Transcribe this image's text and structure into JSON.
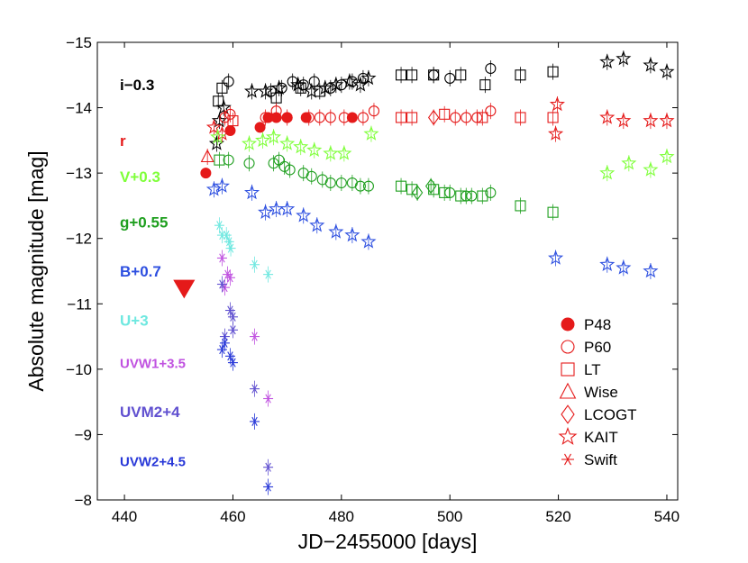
{
  "chart_data": {
    "type": "scatter",
    "xlabel": "JD−2455000 [days]",
    "ylabel": "Absolute magnitude [mag]",
    "xlim": [
      435,
      542
    ],
    "ylim": [
      -15,
      -8
    ],
    "y_inverted": true,
    "xticks": [
      440,
      460,
      480,
      500,
      520,
      540
    ],
    "xtick_labels": [
      "440",
      "460",
      "480",
      "500",
      "520",
      "540"
    ],
    "yticks": [
      -15,
      -14,
      -13,
      -12,
      -11,
      -10,
      -9,
      -8
    ],
    "ytick_labels": [
      "−15",
      "−14",
      "−13",
      "−12",
      "−11",
      "−10",
      "−9",
      "−8"
    ],
    "band_labels": [
      {
        "text": "i−0.3",
        "color": "#000000",
        "y": -14.35
      },
      {
        "text": "r",
        "color": "#e51a1a",
        "y": -13.5
      },
      {
        "text": "V+0.3",
        "color": "#7fff3a",
        "y": -12.95
      },
      {
        "text": "g+0.55",
        "color": "#1f9f1f",
        "y": -12.25
      },
      {
        "text": "B+0.7",
        "color": "#2d4fe0",
        "y": -11.5
      },
      {
        "text": "U+3",
        "color": "#6fe8e0",
        "y": -10.75
      },
      {
        "text": "UVW1+3.5",
        "color": "#c052e0",
        "y": -10.1
      },
      {
        "text": "UVM2+4",
        "color": "#6050d0",
        "y": -9.35
      },
      {
        "text": "UVW2+4.5",
        "color": "#2838d8",
        "y": -8.6
      }
    ],
    "legend": {
      "position": "bottom-right",
      "color": "#e51a1a",
      "entries": [
        {
          "label": "P48",
          "marker": "filled-circle"
        },
        {
          "label": "P60",
          "marker": "circle"
        },
        {
          "label": "LT",
          "marker": "square"
        },
        {
          "label": "Wise",
          "marker": "triangle"
        },
        {
          "label": "LCOGT",
          "marker": "diamond"
        },
        {
          "label": "KAIT",
          "marker": "star"
        },
        {
          "label": "Swift",
          "marker": "asterisk"
        }
      ]
    },
    "series": [
      {
        "band": "i",
        "color": "#000000",
        "marker": "star",
        "points": [
          [
            457,
            -13.45
          ],
          [
            457.5,
            -13.8
          ],
          [
            458.3,
            -14.0
          ],
          [
            463.5,
            -14.25
          ],
          [
            466,
            -14.25
          ],
          [
            468.5,
            -14.3
          ],
          [
            472,
            -14.35
          ],
          [
            474.5,
            -14.25
          ],
          [
            477,
            -14.3
          ],
          [
            479,
            -14.35
          ],
          [
            481.5,
            -14.4
          ],
          [
            483.5,
            -14.35
          ],
          [
            485,
            -14.45
          ],
          [
            529,
            -14.7
          ],
          [
            532,
            -14.75
          ],
          [
            537,
            -14.65
          ],
          [
            540,
            -14.55
          ]
        ]
      },
      {
        "band": "i",
        "color": "#000000",
        "marker": "square",
        "points": [
          [
            457.3,
            -14.1
          ],
          [
            458,
            -14.3
          ],
          [
            468,
            -14.15
          ],
          [
            472.5,
            -14.3
          ],
          [
            476,
            -14.25
          ],
          [
            491,
            -14.5
          ],
          [
            493,
            -14.5
          ],
          [
            497,
            -14.5
          ],
          [
            502,
            -14.5
          ],
          [
            506.5,
            -14.35
          ],
          [
            513,
            -14.5
          ],
          [
            519,
            -14.55
          ]
        ]
      },
      {
        "band": "i",
        "color": "#000000",
        "marker": "circle",
        "points": [
          [
            459.2,
            -14.4
          ],
          [
            467,
            -14.25
          ],
          [
            469,
            -14.3
          ],
          [
            471,
            -14.4
          ],
          [
            473,
            -14.35
          ],
          [
            475,
            -14.4
          ],
          [
            478,
            -14.3
          ],
          [
            480,
            -14.35
          ],
          [
            482,
            -14.4
          ],
          [
            484,
            -14.45
          ],
          [
            497,
            -14.5
          ],
          [
            500,
            -14.45
          ],
          [
            507.5,
            -14.6
          ]
        ]
      },
      {
        "band": "r",
        "color": "#e51a1a",
        "marker": "filled-circle",
        "points": [
          [
            455,
            -13.0
          ],
          [
            459.5,
            -13.65
          ],
          [
            465,
            -13.7
          ],
          [
            466.5,
            -13.85
          ],
          [
            468,
            -13.85
          ],
          [
            470,
            -13.85
          ],
          [
            473.5,
            -13.85
          ],
          [
            482,
            -13.85
          ]
        ]
      },
      {
        "band": "r",
        "color": "#e51a1a",
        "marker": "triangle",
        "points": [
          [
            455.3,
            -13.25
          ]
        ]
      },
      {
        "band": "r",
        "color": "#e51a1a",
        "marker": "star",
        "points": [
          [
            456.5,
            -13.7
          ],
          [
            458,
            -13.6
          ],
          [
            519.5,
            -13.6
          ],
          [
            519.8,
            -14.05
          ],
          [
            529,
            -13.85
          ],
          [
            532,
            -13.8
          ],
          [
            537,
            -13.8
          ],
          [
            540,
            -13.8
          ]
        ]
      },
      {
        "band": "r",
        "color": "#e51a1a",
        "marker": "circle",
        "points": [
          [
            458.5,
            -13.85
          ],
          [
            459.5,
            -13.9
          ],
          [
            466,
            -13.85
          ],
          [
            468,
            -13.95
          ],
          [
            470,
            -13.85
          ],
          [
            474,
            -13.85
          ],
          [
            476,
            -13.85
          ],
          [
            478,
            -13.85
          ],
          [
            480.5,
            -13.85
          ],
          [
            484,
            -13.85
          ],
          [
            486,
            -13.95
          ],
          [
            501,
            -13.85
          ],
          [
            503,
            -13.85
          ],
          [
            505,
            -13.85
          ],
          [
            507.5,
            -13.95
          ]
        ]
      },
      {
        "band": "r",
        "color": "#e51a1a",
        "marker": "square",
        "points": [
          [
            460,
            -13.8
          ],
          [
            491,
            -13.85
          ],
          [
            493,
            -13.85
          ],
          [
            499,
            -13.9
          ],
          [
            506,
            -13.85
          ],
          [
            513,
            -13.85
          ],
          [
            519,
            -13.85
          ]
        ]
      },
      {
        "band": "r",
        "color": "#e51a1a",
        "marker": "diamond",
        "points": [
          [
            497,
            -13.85
          ]
        ]
      },
      {
        "band": "V",
        "color": "#7fff3a",
        "marker": "star",
        "points": [
          [
            457.2,
            -13.55
          ],
          [
            463,
            -13.45
          ],
          [
            465.5,
            -13.5
          ],
          [
            467.5,
            -13.55
          ],
          [
            470,
            -13.45
          ],
          [
            472.5,
            -13.4
          ],
          [
            475,
            -13.35
          ],
          [
            478,
            -13.3
          ],
          [
            480.5,
            -13.3
          ],
          [
            485.5,
            -13.6
          ],
          [
            529,
            -13.0
          ],
          [
            533,
            -13.15
          ],
          [
            537,
            -13.05
          ],
          [
            540,
            -13.25
          ]
        ]
      },
      {
        "band": "g",
        "color": "#1f9f1f",
        "marker": "square",
        "points": [
          [
            457.5,
            -13.2
          ],
          [
            491,
            -12.8
          ],
          [
            493,
            -12.75
          ],
          [
            497,
            -12.75
          ],
          [
            499,
            -12.7
          ],
          [
            502,
            -12.65
          ],
          [
            506,
            -12.65
          ],
          [
            513,
            -12.5
          ],
          [
            519,
            -12.4
          ]
        ]
      },
      {
        "band": "g",
        "color": "#1f9f1f",
        "marker": "circle",
        "points": [
          [
            459.2,
            -13.2
          ],
          [
            463,
            -13.15
          ],
          [
            467.5,
            -13.15
          ],
          [
            468.5,
            -13.2
          ],
          [
            469.5,
            -13.1
          ],
          [
            470.5,
            -13.05
          ],
          [
            473,
            -13.0
          ],
          [
            474.5,
            -12.95
          ],
          [
            476.5,
            -12.9
          ],
          [
            478,
            -12.85
          ],
          [
            480,
            -12.85
          ],
          [
            482,
            -12.85
          ],
          [
            483.5,
            -12.8
          ],
          [
            485,
            -12.8
          ],
          [
            500,
            -12.7
          ],
          [
            503,
            -12.65
          ],
          [
            504,
            -12.65
          ],
          [
            507.5,
            -12.7
          ]
        ]
      },
      {
        "band": "g",
        "color": "#1f9f1f",
        "marker": "diamond",
        "points": [
          [
            494,
            -12.7
          ],
          [
            496.5,
            -12.8
          ]
        ]
      },
      {
        "band": "B",
        "color": "#2d4fe0",
        "marker": "star",
        "points": [
          [
            456.5,
            -12.75
          ],
          [
            458,
            -12.8
          ],
          [
            463.5,
            -12.7
          ],
          [
            466,
            -12.4
          ],
          [
            468,
            -12.45
          ],
          [
            470,
            -12.45
          ],
          [
            473,
            -12.35
          ],
          [
            475.5,
            -12.2
          ],
          [
            479,
            -12.1
          ],
          [
            482,
            -12.05
          ],
          [
            485,
            -11.95
          ],
          [
            519.5,
            -11.7
          ],
          [
            529,
            -11.6
          ],
          [
            532,
            -11.55
          ],
          [
            537,
            -11.5
          ]
        ]
      },
      {
        "band": "U",
        "color": "#6fe8e0",
        "marker": "asterisk",
        "points": [
          [
            457.5,
            -12.2
          ],
          [
            458,
            -12.05
          ],
          [
            458.8,
            -12.05
          ],
          [
            459.3,
            -11.95
          ],
          [
            459.6,
            -11.85
          ],
          [
            464,
            -11.6
          ],
          [
            466.5,
            -11.45
          ]
        ]
      },
      {
        "band": "UVW1",
        "color": "#c052e0",
        "marker": "asterisk",
        "points": [
          [
            458,
            -11.7
          ],
          [
            459,
            -11.45
          ],
          [
            459.5,
            -11.4
          ],
          [
            458.5,
            -11.25
          ],
          [
            464,
            -10.5
          ],
          [
            466.5,
            -9.55
          ]
        ]
      },
      {
        "band": "UVM2",
        "color": "#6050d0",
        "marker": "asterisk",
        "points": [
          [
            458,
            -11.3
          ],
          [
            459.5,
            -10.9
          ],
          [
            460,
            -10.8
          ],
          [
            458.5,
            -10.5
          ],
          [
            460,
            -10.6
          ],
          [
            464,
            -9.7
          ],
          [
            466.5,
            -8.5
          ]
        ]
      },
      {
        "band": "UVW2",
        "color": "#2838d8",
        "marker": "asterisk",
        "points": [
          [
            458.5,
            -10.4
          ],
          [
            459.5,
            -10.2
          ],
          [
            460,
            -10.1
          ],
          [
            458,
            -10.3
          ],
          [
            464,
            -9.2
          ],
          [
            466.5,
            -8.2
          ]
        ]
      },
      {
        "band": "r",
        "color": "#e51a1a",
        "marker": "filled-triangle-down",
        "points": [
          [
            451,
            -11.25
          ]
        ]
      }
    ]
  }
}
